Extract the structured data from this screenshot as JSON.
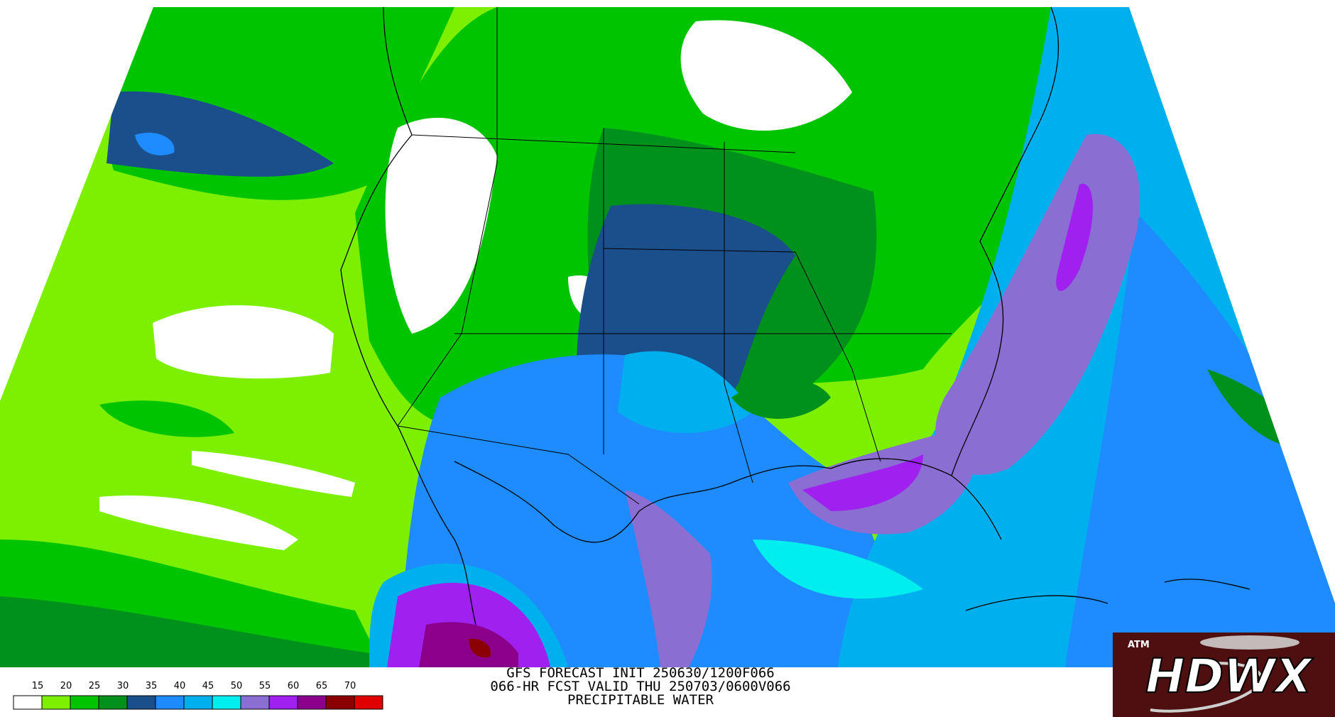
{
  "product": {
    "title_lines": [
      "GFS FORECAST INIT 250630/1200F066",
      "066-HR FCST VALID THU 250703/0600V066",
      "PRECIPITABLE WATER"
    ]
  },
  "legend": {
    "levels": [
      15,
      20,
      25,
      30,
      35,
      40,
      45,
      50,
      55,
      60,
      65,
      70
    ],
    "colors": [
      "#ffffff",
      "#7cf000",
      "#00c400",
      "#00901c",
      "#1a4f8c",
      "#1e8cff",
      "#00b0ee",
      "#00eeee",
      "#8a6ed2",
      "#a020f0",
      "#8b008b",
      "#8b0000",
      "#e00000"
    ]
  },
  "logo": {
    "badge": "ATM",
    "text": "HDWX"
  }
}
